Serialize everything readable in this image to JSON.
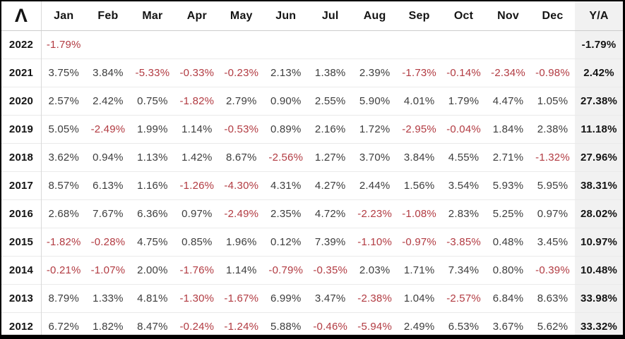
{
  "logo": {
    "glyph": "Λ"
  },
  "colors": {
    "negative_text": "#b23b42",
    "positive_text": "#3d3d3d",
    "header_text": "#141414",
    "ya_column_background": "#f1f1f1",
    "outer_border": "#000000",
    "row_divider": "#eaeaea"
  },
  "chart_data": {
    "type": "table",
    "columns": [
      "Jan",
      "Feb",
      "Mar",
      "Apr",
      "May",
      "Jun",
      "Jul",
      "Aug",
      "Sep",
      "Oct",
      "Nov",
      "Dec"
    ],
    "ya_column_label": "Y/A",
    "rows": [
      {
        "year": "2022",
        "monthly": [
          "-1.79%",
          "",
          "",
          "",
          "",
          "",
          "",
          "",
          "",
          "",
          "",
          ""
        ],
        "ya": "-1.79%"
      },
      {
        "year": "2021",
        "monthly": [
          "3.75%",
          "3.84%",
          "-5.33%",
          "-0.33%",
          "-0.23%",
          "2.13%",
          "1.38%",
          "2.39%",
          "-1.73%",
          "-0.14%",
          "-2.34%",
          "-0.98%"
        ],
        "ya": "2.42%"
      },
      {
        "year": "2020",
        "monthly": [
          "2.57%",
          "2.42%",
          "0.75%",
          "-1.82%",
          "2.79%",
          "0.90%",
          "2.55%",
          "5.90%",
          "4.01%",
          "1.79%",
          "4.47%",
          "1.05%"
        ],
        "ya": "27.38%"
      },
      {
        "year": "2019",
        "monthly": [
          "5.05%",
          "-2.49%",
          "1.99%",
          "1.14%",
          "-0.53%",
          "0.89%",
          "2.16%",
          "1.72%",
          "-2.95%",
          "-0.04%",
          "1.84%",
          "2.38%"
        ],
        "ya": "11.18%"
      },
      {
        "year": "2018",
        "monthly": [
          "3.62%",
          "0.94%",
          "1.13%",
          "1.42%",
          "8.67%",
          "-2.56%",
          "1.27%",
          "3.70%",
          "3.84%",
          "4.55%",
          "2.71%",
          "-1.32%"
        ],
        "ya": "27.96%"
      },
      {
        "year": "2017",
        "monthly": [
          "8.57%",
          "6.13%",
          "1.16%",
          "-1.26%",
          "-4.30%",
          "4.31%",
          "4.27%",
          "2.44%",
          "1.56%",
          "3.54%",
          "5.93%",
          "5.95%"
        ],
        "ya": "38.31%"
      },
      {
        "year": "2016",
        "monthly": [
          "2.68%",
          "7.67%",
          "6.36%",
          "0.97%",
          "-2.49%",
          "2.35%",
          "4.72%",
          "-2.23%",
          "-1.08%",
          "2.83%",
          "5.25%",
          "0.97%"
        ],
        "ya": "28.02%"
      },
      {
        "year": "2015",
        "monthly": [
          "-1.82%",
          "-0.28%",
          "4.75%",
          "0.85%",
          "1.96%",
          "0.12%",
          "7.39%",
          "-1.10%",
          "-0.97%",
          "-3.85%",
          "0.48%",
          "3.45%"
        ],
        "ya": "10.97%"
      },
      {
        "year": "2014",
        "monthly": [
          "-0.21%",
          "-1.07%",
          "2.00%",
          "-1.76%",
          "1.14%",
          "-0.79%",
          "-0.35%",
          "2.03%",
          "1.71%",
          "7.34%",
          "0.80%",
          "-0.39%"
        ],
        "ya": "10.48%"
      },
      {
        "year": "2013",
        "monthly": [
          "8.79%",
          "1.33%",
          "4.81%",
          "-1.30%",
          "-1.67%",
          "6.99%",
          "3.47%",
          "-2.38%",
          "1.04%",
          "-2.57%",
          "6.84%",
          "8.63%"
        ],
        "ya": "33.98%"
      },
      {
        "year": "2012",
        "monthly": [
          "6.72%",
          "1.82%",
          "8.47%",
          "-0.24%",
          "-1.24%",
          "5.88%",
          "-0.46%",
          "-5.94%",
          "2.49%",
          "6.53%",
          "3.67%",
          "5.62%"
        ],
        "ya": "33.32%"
      }
    ]
  }
}
